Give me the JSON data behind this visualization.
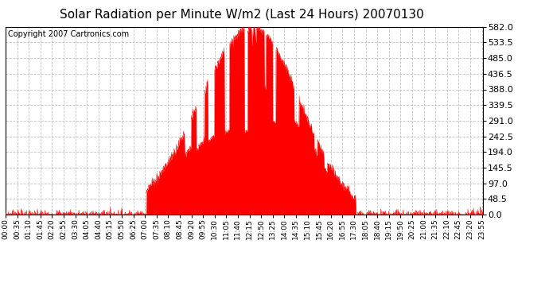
{
  "title": "Solar Radiation per Minute W/m2 (Last 24 Hours) 20070130",
  "copyright_text": "Copyright 2007 Cartronics.com",
  "fill_color": "#FF0000",
  "line_color": "#FF0000",
  "background_color": "#FFFFFF",
  "grid_color": "#BBBBBB",
  "baseline_color": "#FF0000",
  "yticks": [
    0.0,
    48.5,
    97.0,
    145.5,
    194.0,
    242.5,
    291.0,
    339.5,
    388.0,
    436.5,
    485.0,
    533.5,
    582.0
  ],
  "ymax": 582.0,
  "ymin": 0.0,
  "title_fontsize": 11,
  "copyright_fontsize": 7,
  "tick_label_fontsize": 6.5,
  "ytick_fontsize": 8
}
